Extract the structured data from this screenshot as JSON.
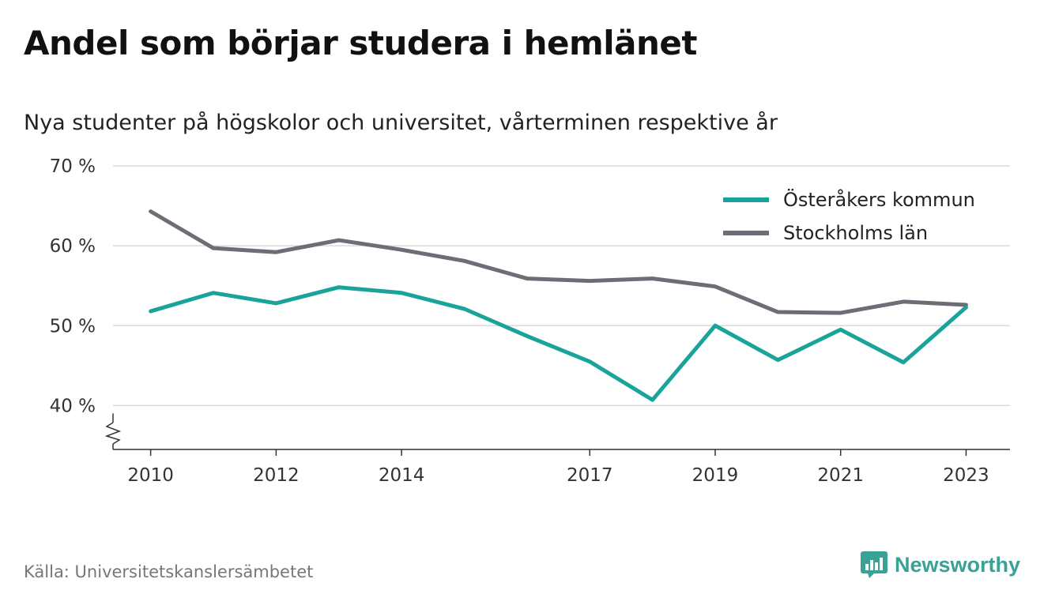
{
  "title": "Andel som börjar studera i hemlänet",
  "subtitle": "Nya studenter på högskolor och universitet, vårterminen respektive år",
  "source": "Källa: Universitetskanslersämbetet",
  "brand": {
    "name": "Newsworthy",
    "icon": "newsworthy-logo-icon",
    "color": "#3aa195"
  },
  "chart_data": {
    "type": "line",
    "title": "Andel som börjar studera i hemlänet",
    "subtitle": "Nya studenter på högskolor och universitet, vårterminen respektive år",
    "x": [
      2010,
      2011,
      2012,
      2013,
      2014,
      2015,
      2016,
      2017,
      2018,
      2019,
      2020,
      2021,
      2022,
      2023
    ],
    "x_ticks": [
      {
        "value": 2010,
        "label": "2010"
      },
      {
        "value": 2012,
        "label": "2012"
      },
      {
        "value": 2014,
        "label": "2014"
      },
      {
        "value": 2017,
        "label": "2017"
      },
      {
        "value": 2019,
        "label": "2019"
      },
      {
        "value": 2021,
        "label": "2021"
      },
      {
        "value": 2023,
        "label": "2023"
      }
    ],
    "y_ticks": [
      {
        "value": 40,
        "label": "40 %"
      },
      {
        "value": 50,
        "label": "50 %"
      },
      {
        "value": 60,
        "label": "60 %"
      },
      {
        "value": 70,
        "label": "70 %"
      }
    ],
    "ylim": [
      34.5,
      70
    ],
    "xlim": [
      2009.4,
      2023.7
    ],
    "axis_break": true,
    "grid": true,
    "legend_position": "top-right",
    "series": [
      {
        "name": "Österåkers kommun",
        "color": "#1aa39a",
        "values": [
          51.8,
          54.1,
          52.8,
          54.8,
          54.1,
          52.1,
          48.7,
          45.5,
          40.7,
          50.0,
          45.7,
          49.5,
          45.4,
          52.3
        ]
      },
      {
        "name": "Stockholms län",
        "color": "#6e6d75",
        "values": [
          64.3,
          59.7,
          59.2,
          60.7,
          59.5,
          58.1,
          55.9,
          55.6,
          55.9,
          54.9,
          51.7,
          51.6,
          53.0,
          52.6
        ]
      }
    ]
  }
}
